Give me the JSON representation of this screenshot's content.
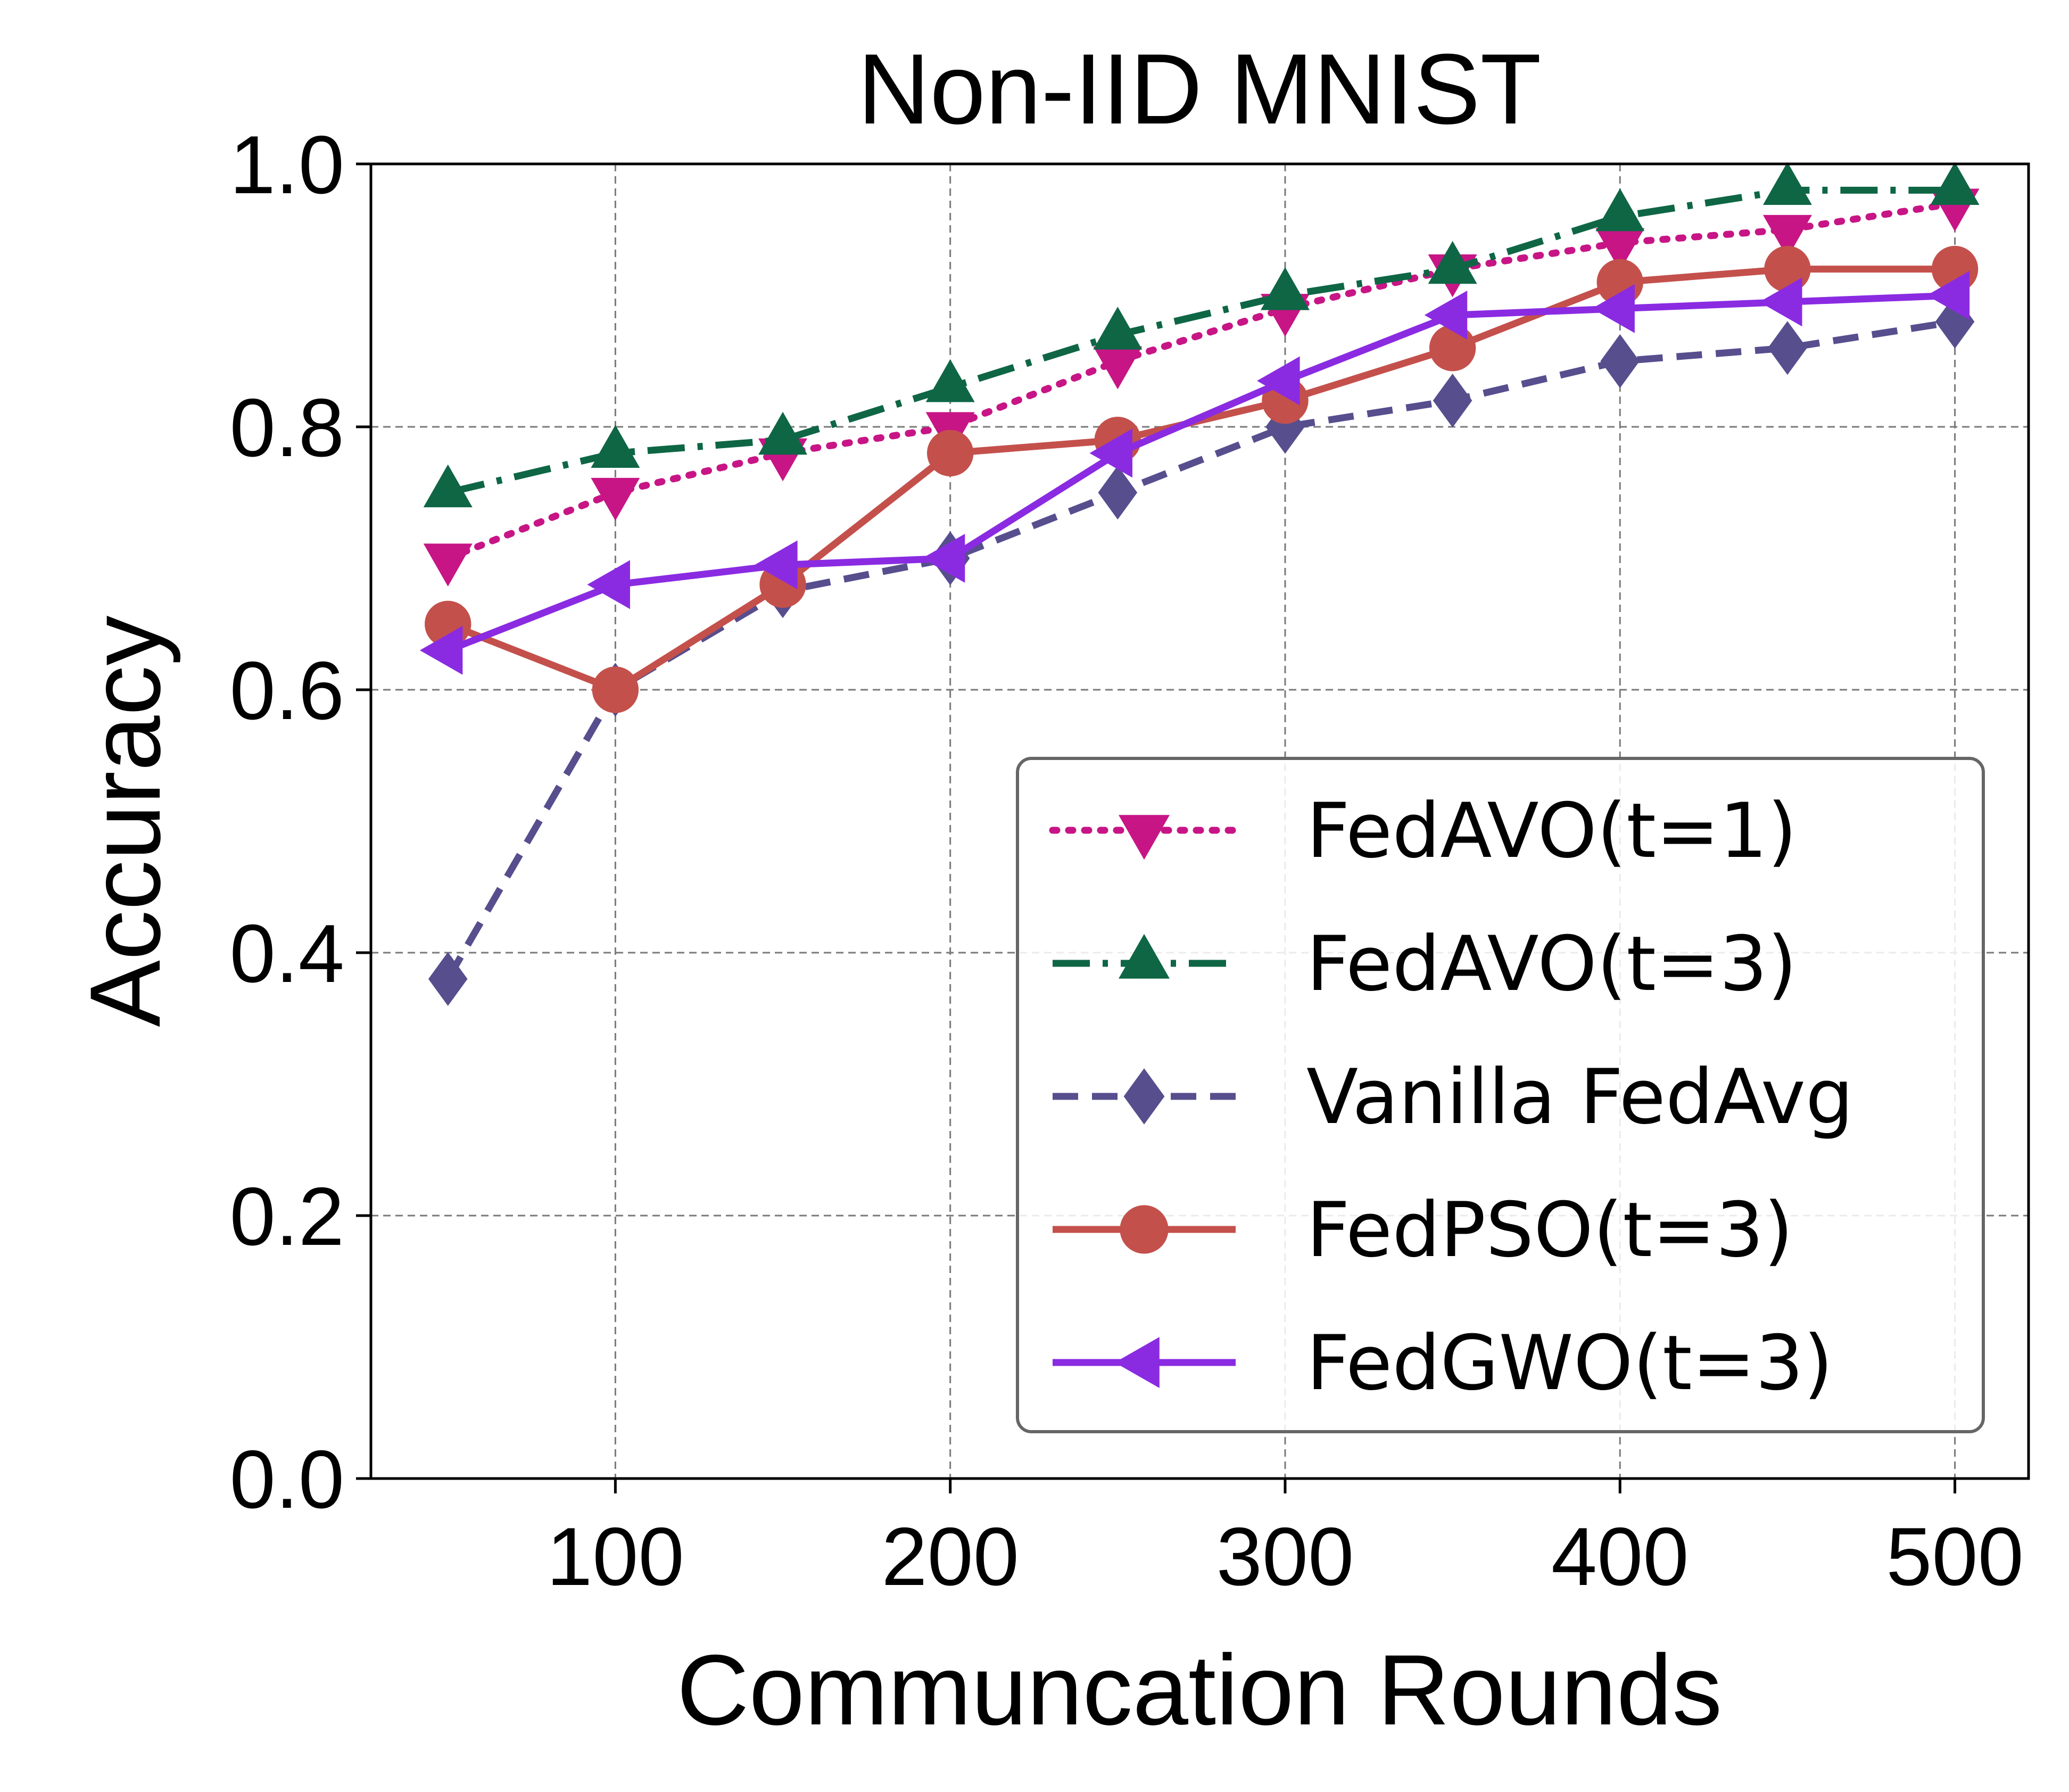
{
  "chart_data": {
    "type": "line",
    "title": "Non-IID MNIST",
    "xlabel": "Communcation Rounds",
    "ylabel": "Accuracy",
    "xlim": [
      27,
      522
    ],
    "ylim": [
      0.0,
      1.0
    ],
    "grid": true,
    "legend_position": "lower-right",
    "x": [
      50,
      100,
      150,
      200,
      250,
      300,
      350,
      400,
      450,
      500
    ],
    "x_ticks": [
      100,
      200,
      300,
      400,
      500
    ],
    "x_tick_labels": [
      "100",
      "200",
      "300",
      "400",
      "500"
    ],
    "y_ticks": [
      0.0,
      0.2,
      0.4,
      0.6,
      0.8,
      1.0
    ],
    "y_tick_labels": [
      "0.0",
      "0.2",
      "0.4",
      "0.6",
      "0.8",
      "1.0"
    ],
    "series": [
      {
        "name": "FedAVO(t=1)",
        "color": "#c71585",
        "line": "dotted",
        "marker": "triangle-down",
        "values": [
          0.7,
          0.75,
          0.78,
          0.8,
          0.85,
          0.89,
          0.92,
          0.94,
          0.95,
          0.97
        ]
      },
      {
        "name": "FedAVO(t=3)",
        "color": "#0e6645",
        "line": "dashdot",
        "marker": "triangle-up",
        "values": [
          0.75,
          0.78,
          0.79,
          0.83,
          0.87,
          0.9,
          0.92,
          0.96,
          0.98,
          0.98
        ]
      },
      {
        "name": "Vanilla FedAvg",
        "color": "#574e8e",
        "line": "dashed",
        "marker": "diamond",
        "values": [
          0.38,
          0.6,
          0.675,
          0.7,
          0.75,
          0.8,
          0.82,
          0.85,
          0.86,
          0.88
        ]
      },
      {
        "name": "FedPSO(t=3)",
        "color": "#c4504c",
        "line": "solid",
        "marker": "circle",
        "values": [
          0.65,
          0.6,
          0.68,
          0.78,
          0.79,
          0.82,
          0.86,
          0.91,
          0.92,
          0.92
        ]
      },
      {
        "name": "FedGWO(t=3)",
        "color": "#8a2be2",
        "line": "solid",
        "marker": "triangle-left",
        "values": [
          0.63,
          0.68,
          0.695,
          0.7,
          0.78,
          0.835,
          0.885,
          0.89,
          0.895,
          0.9
        ]
      }
    ]
  }
}
